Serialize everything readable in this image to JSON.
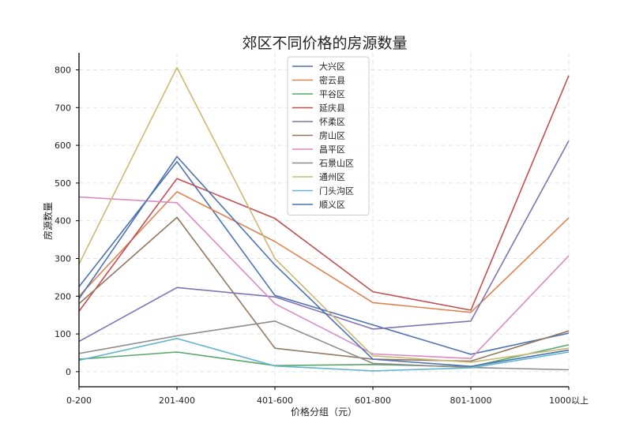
{
  "chart_data": {
    "type": "line",
    "title": "郊区不同价格的房源数量",
    "xlabel": "价格分组（元）",
    "ylabel": "房源数量",
    "categories": [
      "0-200",
      "201-400",
      "401-600",
      "601-800",
      "801-1000",
      "1000以上"
    ],
    "ylim": [
      -40,
      845
    ],
    "yticks": [
      0,
      100,
      200,
      300,
      400,
      500,
      600,
      700,
      800
    ],
    "grid": true,
    "legend_position": "top-center",
    "series": [
      {
        "name": "大兴区",
        "color": "#4c72b0",
        "values": [
          225,
          557,
          202,
          124,
          46,
          102
        ]
      },
      {
        "name": "密云县",
        "color": "#dd8452",
        "values": [
          200,
          477,
          345,
          183,
          157,
          408
        ]
      },
      {
        "name": "平谷区",
        "color": "#55a868",
        "values": [
          33,
          52,
          16,
          19,
          13,
          71
        ]
      },
      {
        "name": "延庆县",
        "color": "#c44e52",
        "values": [
          160,
          512,
          406,
          212,
          163,
          785
        ]
      },
      {
        "name": "怀柔区",
        "color": "#8172b3",
        "values": [
          80,
          223,
          198,
          113,
          134,
          612
        ]
      },
      {
        "name": "房山区",
        "color": "#937860",
        "values": [
          180,
          409,
          62,
          33,
          28,
          108
        ]
      },
      {
        "name": "昌平区",
        "color": "#da8bc3",
        "values": [
          463,
          448,
          180,
          47,
          35,
          307
        ]
      },
      {
        "name": "石景山区",
        "color": "#8c8c8c",
        "values": [
          48,
          95,
          134,
          22,
          11,
          5
        ]
      },
      {
        "name": "通州区",
        "color": "#ccb974",
        "values": [
          285,
          806,
          300,
          42,
          25,
          62
        ]
      },
      {
        "name": "门头沟区",
        "color": "#64b5cd",
        "values": [
          30,
          88,
          15,
          2,
          10,
          52
        ]
      },
      {
        "name": "顺义区",
        "color": "#4c72b0",
        "values": [
          193,
          570,
          283,
          33,
          14,
          57
        ]
      }
    ]
  }
}
